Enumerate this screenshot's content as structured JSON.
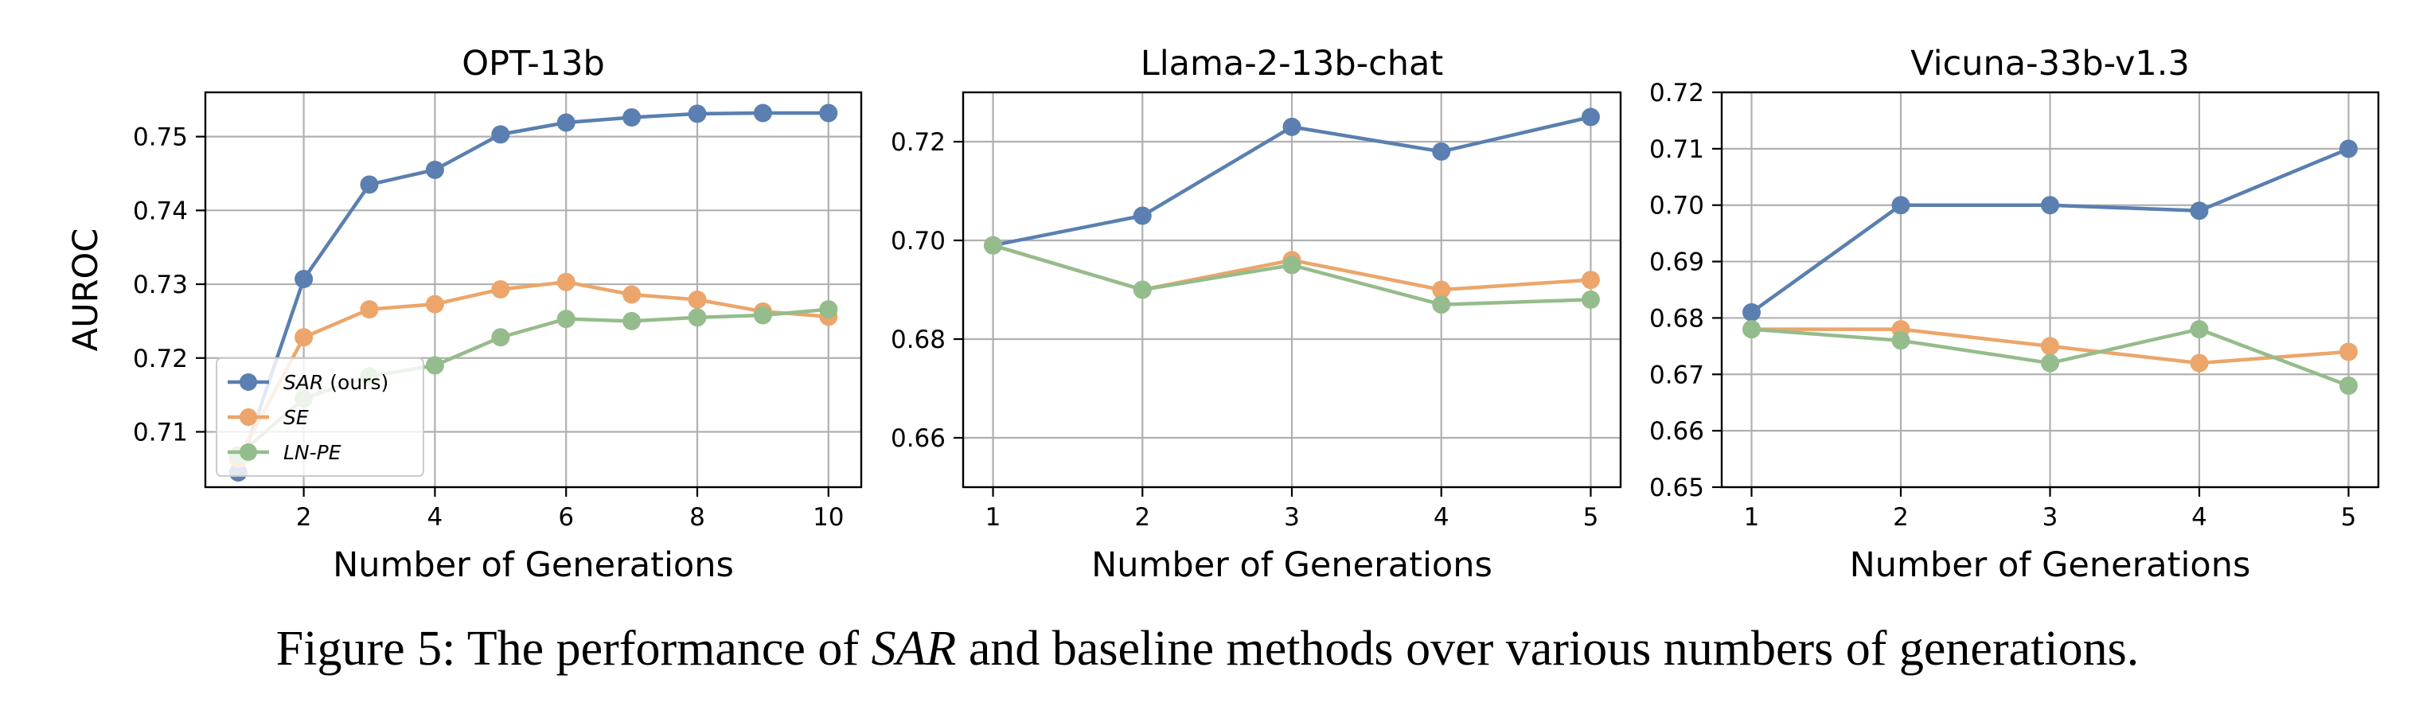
{
  "caption": {
    "prefix": "Figure 5: The performance of ",
    "em": "SAR",
    "suffix": " and baseline methods over various numbers of generations."
  },
  "colors": {
    "sar": "#5a7fb0",
    "se": "#eca56a",
    "lnpe": "#95bc8c",
    "grid": "#b0b0b0"
  },
  "chart_data": [
    {
      "type": "line",
      "title": "OPT-13b",
      "xlabel": "Number of Generations",
      "ylabel": "AUROC",
      "xlim": [
        0.5,
        10.5
      ],
      "ylim": [
        0.7025,
        0.756
      ],
      "xticks": [
        2,
        4,
        6,
        8,
        10
      ],
      "yticks": [
        0.71,
        0.72,
        0.73,
        0.74,
        0.75
      ],
      "ytick_labels": [
        "0.71",
        "0.72",
        "0.73",
        "0.74",
        "0.75"
      ],
      "grid": true,
      "legend": {
        "position": "lower-left",
        "entries": [
          {
            "name": "SAR",
            "suffix": " (ours)"
          },
          {
            "name": "SE",
            "suffix": ""
          },
          {
            "name": "LN-PE",
            "suffix": ""
          }
        ]
      },
      "x": [
        1,
        2,
        3,
        4,
        5,
        6,
        7,
        8,
        9,
        10
      ],
      "series": [
        {
          "name": "SAR (ours)",
          "values": [
            0.7045,
            0.7307,
            0.7435,
            0.7455,
            0.7503,
            0.7519,
            0.7526,
            0.7531,
            0.7532,
            0.7532
          ]
        },
        {
          "name": "SE",
          "values": [
            0.7063,
            0.7228,
            0.7266,
            0.7273,
            0.7293,
            0.7303,
            0.7286,
            0.7279,
            0.7263,
            0.7256
          ]
        },
        {
          "name": "LN-PE",
          "values": [
            0.7068,
            0.7145,
            0.7175,
            0.719,
            0.7228,
            0.7253,
            0.725,
            0.7255,
            0.7258,
            0.7266
          ]
        }
      ]
    },
    {
      "type": "line",
      "title": "Llama-2-13b-chat",
      "xlabel": "Number of Generations",
      "ylabel": "",
      "xlim": [
        0.8,
        5.2
      ],
      "ylim": [
        0.65,
        0.73
      ],
      "xticks": [
        1,
        2,
        3,
        4,
        5
      ],
      "yticks": [
        0.66,
        0.68,
        0.7,
        0.72
      ],
      "ytick_labels": [
        "0.66",
        "0.68",
        "0.70",
        "0.72"
      ],
      "grid": true,
      "x": [
        1,
        2,
        3,
        4,
        5
      ],
      "series": [
        {
          "name": "SAR (ours)",
          "values": [
            0.699,
            0.705,
            0.723,
            0.718,
            0.725
          ]
        },
        {
          "name": "SE",
          "values": [
            0.699,
            0.69,
            0.696,
            0.69,
            0.692
          ]
        },
        {
          "name": "LN-PE",
          "values": [
            0.699,
            0.69,
            0.695,
            0.687,
            0.688
          ]
        }
      ]
    },
    {
      "type": "line",
      "title": "Vicuna-33b-v1.3",
      "xlabel": "Number of Generations",
      "ylabel": "",
      "xlim": [
        0.8,
        5.2
      ],
      "ylim": [
        0.65,
        0.72
      ],
      "xticks": [
        1,
        2,
        3,
        4,
        5
      ],
      "yticks": [
        0.65,
        0.66,
        0.67,
        0.68,
        0.69,
        0.7,
        0.71,
        0.72
      ],
      "ytick_labels": [
        "0.65",
        "0.66",
        "0.67",
        "0.68",
        "0.69",
        "0.70",
        "0.71",
        "0.72"
      ],
      "grid": true,
      "x": [
        1,
        2,
        3,
        4,
        5
      ],
      "series": [
        {
          "name": "SAR (ours)",
          "values": [
            0.681,
            0.7,
            0.7,
            0.699,
            0.71
          ]
        },
        {
          "name": "SE",
          "values": [
            0.678,
            0.678,
            0.675,
            0.672,
            0.674
          ]
        },
        {
          "name": "LN-PE",
          "values": [
            0.678,
            0.676,
            0.672,
            0.678,
            0.668
          ]
        }
      ]
    }
  ]
}
